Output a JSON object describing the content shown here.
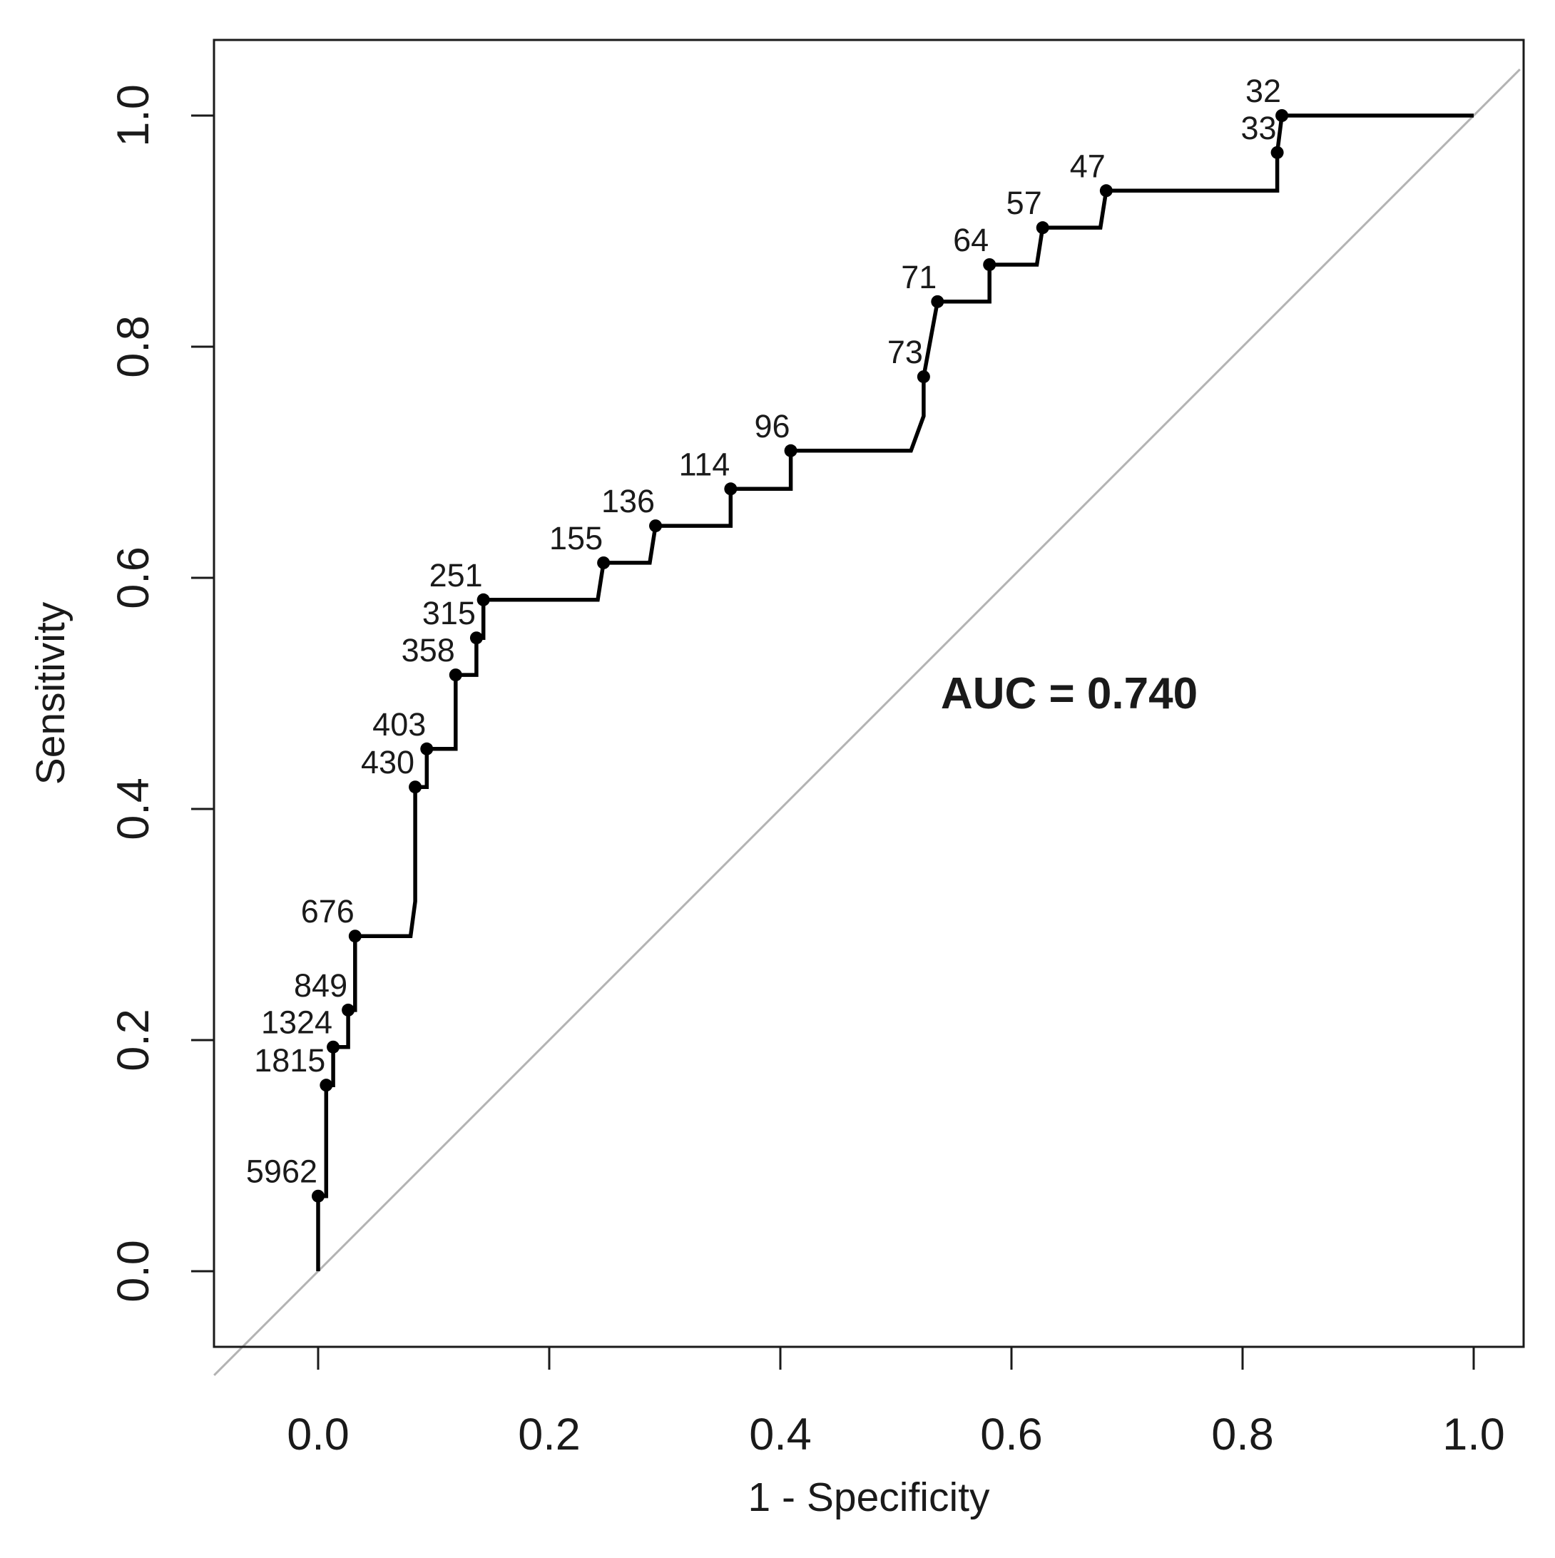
{
  "chart_data": {
    "type": "line",
    "title": "",
    "xlabel": "1 - Specificity",
    "ylabel": "Sensitivity",
    "xlim": [
      -0.09,
      1.04
    ],
    "ylim": [
      -0.065,
      1.065
    ],
    "xticks": [
      "0.0",
      "0.2",
      "0.4",
      "0.6",
      "0.8",
      "1.0"
    ],
    "yticks": [
      "0.0",
      "0.2",
      "0.4",
      "0.6",
      "0.8",
      "1.0"
    ],
    "annotation": "AUC = 0.740",
    "series": [
      {
        "name": "ROC curve",
        "x": [
          0.0,
          0.0,
          0.007,
          0.007,
          0.013,
          0.013,
          0.026,
          0.026,
          0.032,
          0.032,
          0.08,
          0.084,
          0.084,
          0.094,
          0.094,
          0.119,
          0.119,
          0.137,
          0.137,
          0.143,
          0.143,
          0.242,
          0.247,
          0.287,
          0.292,
          0.357,
          0.357,
          0.409,
          0.409,
          0.513,
          0.524,
          0.524,
          0.536,
          0.581,
          0.581,
          0.622,
          0.627,
          0.677,
          0.682,
          0.83,
          0.83,
          0.834,
          1.0
        ],
        "y": [
          0.0,
          0.065,
          0.065,
          0.161,
          0.161,
          0.194,
          0.194,
          0.226,
          0.226,
          0.29,
          0.29,
          0.32,
          0.419,
          0.419,
          0.452,
          0.452,
          0.516,
          0.516,
          0.548,
          0.548,
          0.581,
          0.581,
          0.613,
          0.613,
          0.645,
          0.645,
          0.677,
          0.677,
          0.71,
          0.71,
          0.74,
          0.774,
          0.839,
          0.839,
          0.871,
          0.871,
          0.903,
          0.903,
          0.935,
          0.935,
          0.968,
          1.0,
          1.0
        ]
      },
      {
        "name": "reference",
        "x": [
          -0.09,
          1.04
        ],
        "y": [
          -0.09,
          1.04
        ]
      }
    ],
    "labeled_points": [
      {
        "label": "5962",
        "x": 0.0,
        "y": 0.065
      },
      {
        "label": "1815",
        "x": 0.007,
        "y": 0.161
      },
      {
        "label": "1324",
        "x": 0.013,
        "y": 0.194
      },
      {
        "label": "849",
        "x": 0.026,
        "y": 0.226
      },
      {
        "label": "676",
        "x": 0.032,
        "y": 0.29
      },
      {
        "label": "430",
        "x": 0.084,
        "y": 0.419
      },
      {
        "label": "403",
        "x": 0.094,
        "y": 0.452
      },
      {
        "label": "358",
        "x": 0.119,
        "y": 0.516
      },
      {
        "label": "315",
        "x": 0.137,
        "y": 0.548
      },
      {
        "label": "251",
        "x": 0.143,
        "y": 0.581
      },
      {
        "label": "155",
        "x": 0.247,
        "y": 0.613
      },
      {
        "label": "136",
        "x": 0.292,
        "y": 0.645
      },
      {
        "label": "114",
        "x": 0.357,
        "y": 0.677
      },
      {
        "label": "96",
        "x": 0.409,
        "y": 0.71
      },
      {
        "label": "73",
        "x": 0.524,
        "y": 0.774
      },
      {
        "label": "71",
        "x": 0.536,
        "y": 0.839
      },
      {
        "label": "64",
        "x": 0.581,
        "y": 0.871
      },
      {
        "label": "57",
        "x": 0.627,
        "y": 0.903
      },
      {
        "label": "47",
        "x": 0.682,
        "y": 0.935
      },
      {
        "label": "33",
        "x": 0.83,
        "y": 0.968
      },
      {
        "label": "32",
        "x": 0.834,
        "y": 1.0
      }
    ]
  }
}
